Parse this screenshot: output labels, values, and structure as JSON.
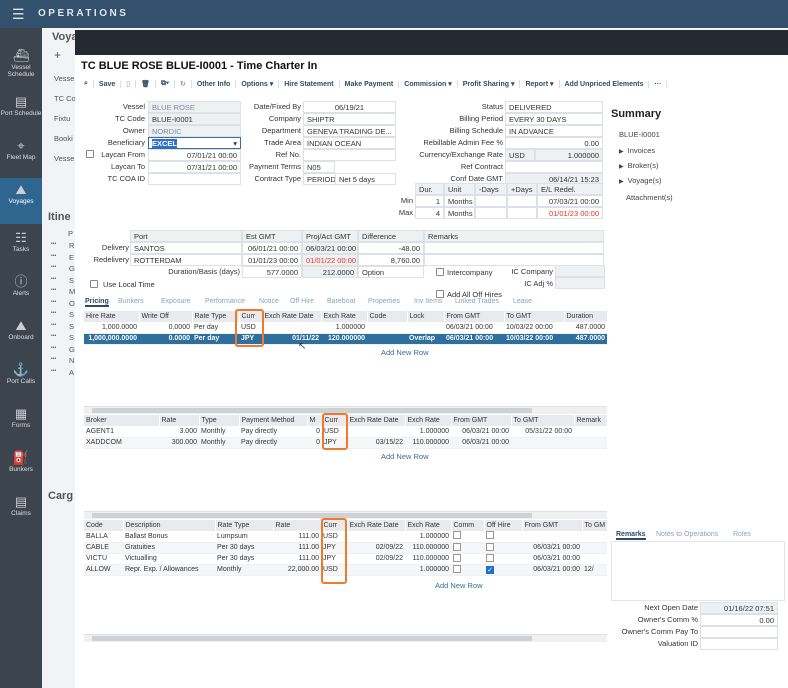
{
  "app": {
    "title": "OPERATIONS"
  },
  "sidebar": {
    "items": [
      {
        "label": "Vessel Schedule",
        "icon": "ship-icon"
      },
      {
        "label": "Port Schedule",
        "icon": "calendar-icon"
      },
      {
        "label": "Fleet Map",
        "icon": "map-pin-icon"
      },
      {
        "label": "Voyages",
        "icon": "voyage-icon",
        "active": true
      },
      {
        "label": "Tasks",
        "icon": "tasks-icon"
      },
      {
        "label": "Alerts",
        "icon": "alert-icon"
      },
      {
        "label": "Onboard",
        "icon": "onboard-icon"
      },
      {
        "label": "Port Calls",
        "icon": "anchor-icon"
      },
      {
        "label": "Forms",
        "icon": "forms-icon"
      },
      {
        "label": "Bunkers",
        "icon": "fuel-icon"
      },
      {
        "label": "Claims",
        "icon": "claims-icon"
      }
    ]
  },
  "background": {
    "title": "Voya",
    "add": "+",
    "fields": [
      "Vesse",
      "TC Co",
      "Fixtu",
      "Booki",
      "Vesse"
    ],
    "itinerary_title": "Itine",
    "itinerary_header": "P",
    "itinerary_rows": [
      "R",
      "E",
      "G",
      "S",
      "M",
      "O",
      "S",
      "S",
      "S",
      "G",
      "N",
      "A"
    ],
    "row_menu": "•••",
    "cargo_title": "Carg"
  },
  "modal": {
    "title": "TC BLUE ROSE BLUE-I0001 - Time Charter In"
  },
  "toolbar": {
    "items": [
      "Save",
      "Other Info",
      "Options ▾",
      "Hire Statement",
      "Make Payment",
      "Commission ▾",
      "Profit Sharing ▾",
      "Report ▾",
      "Add Unpriced Elements",
      "···"
    ]
  },
  "form": {
    "left": [
      [
        "Vessel",
        "BLUE ROSE"
      ],
      [
        "TC Code",
        "BLUE-I0001"
      ],
      [
        "Owner",
        "NORDIC"
      ],
      [
        "Beneficiary",
        "EXCEL"
      ],
      [
        "Laycan From",
        "07/01/21 00:00"
      ],
      [
        "Laycan To",
        "07/31/21 00:00"
      ],
      [
        "TC COA ID",
        ""
      ]
    ],
    "middle": [
      [
        "Date/Fixed By",
        "06/19/21"
      ],
      [
        "Company",
        "SHIPTR"
      ],
      [
        "Department",
        "GENEVA TRADING DE..."
      ],
      [
        "Trade Area",
        "INDIAN OCEAN"
      ],
      [
        "Ref No.",
        ""
      ],
      [
        "Payment Terms",
        "N05"
      ],
      [
        "Contract Type",
        "PERIOD TC"
      ]
    ],
    "payment_terms_desc": "Net 5 days",
    "right": [
      [
        "Status",
        "DELIVERED"
      ],
      [
        "Billing Period",
        "EVERY 30 DAYS"
      ],
      [
        "Billing Schedule",
        "IN ADVANCE"
      ],
      [
        "Rebillable Admin Fee %",
        "0.00"
      ],
      [
        "Currency/Exchange Rate",
        "USD"
      ],
      [
        "Ref Contract",
        ""
      ],
      [
        "Conf Date GMT",
        "06/14/21 15:23"
      ]
    ],
    "exchange_rate": "1.000000",
    "duration": {
      "headers": [
        "Dur.",
        "Unit",
        "-Days",
        "+Days",
        "E/L Redel."
      ],
      "rows": [
        {
          "label": "Min",
          "values": [
            "1",
            "Months",
            "",
            "",
            "07/03/21 00:00"
          ]
        },
        {
          "label": "Max",
          "values": [
            "4",
            "Months",
            "",
            "",
            "01/01/23 00:00"
          ]
        }
      ]
    }
  },
  "summary": {
    "title": "Summary",
    "code": "BLUE-I0001",
    "items": [
      "Invoices",
      "Broker(s)",
      "Voyage(s)"
    ],
    "attachments": "Attachment(s)"
  },
  "ports": {
    "headers": [
      "Port",
      "Est GMT",
      "Proj/Act GMT",
      "Difference",
      "Remarks"
    ],
    "rows": [
      {
        "label": "Delivery",
        "values": [
          "SANTOS",
          "06/01/21 00:00",
          "06/03/21 00:00",
          "-48.00",
          ""
        ]
      },
      {
        "label": "Redelivery",
        "values": [
          "ROTTERDAM",
          "01/01/23 00:00",
          "01/01/22 00:00",
          "8,760.00",
          ""
        ]
      }
    ],
    "duration_label": "Duration/Basis (days)",
    "duration_values": [
      "577.0000",
      "212.0000",
      "Option"
    ],
    "use_local_time": "Use Local Time",
    "intercompany": "Intercompany",
    "ic_company": "IC Company",
    "ic_adj": "IC Adj %",
    "add_all_off_hires": "Add All Off Hires"
  },
  "tabs": [
    "Pricing",
    "Bunkers",
    "Exposure",
    "Performance",
    "Notice",
    "Off Hire",
    "Bareboat",
    "Properties",
    "Inv Items",
    "Linked Trades",
    "Lease"
  ],
  "hire": {
    "headers": [
      "Hire Rate",
      "Write Off",
      "Rate Type",
      "Curr",
      "Exch Rate Date",
      "Exch Rate",
      "Code",
      "Lock",
      "From GMT",
      "To GMT",
      "Duration"
    ],
    "rows": [
      [
        "1,000.0000",
        "0.0000",
        "Per day",
        "USD",
        "",
        "1.000000",
        "",
        "",
        "06/03/21 00:00",
        "10/03/22 00:00",
        "487.0000"
      ],
      [
        "1,000,000.0000",
        "0.0000",
        "Per day",
        "JPY",
        "01/11/22",
        "120.000000",
        "",
        "Overlap",
        "06/03/21 00:00",
        "10/03/22 00:00",
        "487.0000"
      ]
    ],
    "selected_row": 1,
    "add_row": "Add New Row"
  },
  "broker": {
    "headers": [
      "Broker",
      "Rate",
      "Type",
      "Payment Method",
      "M",
      "Curr",
      "Exch Rate Date",
      "Exch Rate",
      "From GMT",
      "To GMT",
      "Remark"
    ],
    "rows": [
      [
        "AGENT1",
        "3.000",
        "Monthly",
        "Pay directly",
        "0",
        "USD",
        "",
        "1.000000",
        "06/03/21 00:00",
        "05/31/22 00:00",
        ""
      ],
      [
        "XADDCOM",
        "300.000",
        "Monthly",
        "Pay directly",
        "0",
        "JPY",
        "03/15/22",
        "110.000000",
        "06/03/21 00:00",
        "",
        ""
      ]
    ],
    "add_row": "Add New Row"
  },
  "expenses": {
    "headers": [
      "Code",
      "Description",
      "Rate Type",
      "Rate",
      "Curr",
      "Exch Rate Date",
      "Exch Rate",
      "Comm",
      "Off Hire",
      "From GMT",
      "To GM"
    ],
    "rows": [
      [
        "BALLA",
        "Ballast Bonus",
        "Lumpsum",
        "111.00",
        "USD",
        "",
        "1.000000",
        false,
        false,
        "",
        ""
      ],
      [
        "CABLE",
        "Gratuities",
        "Per 30 days",
        "111.00",
        "JPY",
        "02/09/22",
        "110.000000",
        false,
        false,
        "06/03/21 00:00",
        ""
      ],
      [
        "VICTU",
        "Victualling",
        "Per 30 days",
        "111.00",
        "JPY",
        "02/09/22",
        "110.000000",
        false,
        false,
        "06/03/21 00:00",
        ""
      ],
      [
        "ALLOW",
        "Repr. Exp. / Allowances",
        "Monthly",
        "22,000.00",
        "USD",
        "",
        "1.000000",
        false,
        true,
        "06/03/21 00:00",
        "12/"
      ]
    ],
    "add_row": "Add New Row"
  },
  "remarks": {
    "tabs": [
      "Remarks",
      "Notes to Operations",
      "Roles"
    ],
    "fields": [
      [
        "Next Open Date",
        "01/16/22 07:51"
      ],
      [
        "Owner's Comm %",
        "0.00"
      ],
      [
        "Owner's Comm Pay To",
        ""
      ],
      [
        "Valuation ID",
        ""
      ]
    ]
  },
  "colors": {
    "highlight": "#f07a2c",
    "selected_row": "#2f6f9e",
    "topbar": "#33506d",
    "sidebar": "#3c454e",
    "active_nav": "#2f6690",
    "late_date": "#e8322a"
  }
}
